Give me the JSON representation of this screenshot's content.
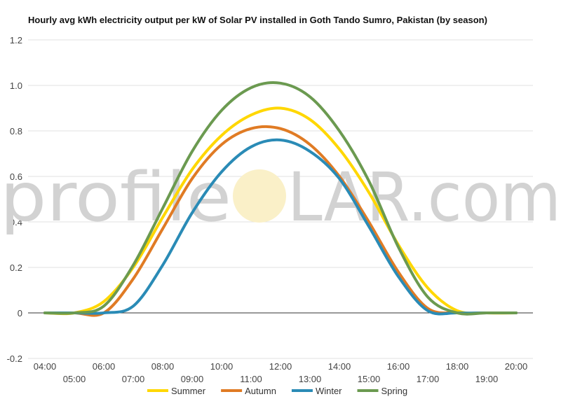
{
  "chart_data": {
    "type": "line",
    "title": "Hourly avg kWh electricity output per kW of Solar PV installed in Goth Tando Sumro, Pakistan (by season)",
    "watermark": {
      "left": "profile",
      "right": "LAR.com"
    },
    "x": [
      "04:00",
      "05:00",
      "06:00",
      "07:00",
      "08:00",
      "09:00",
      "10:00",
      "11:00",
      "12:00",
      "13:00",
      "14:00",
      "15:00",
      "16:00",
      "17:00",
      "18:00",
      "19:00",
      "20:00"
    ],
    "ylim": [
      -0.2,
      1.2
    ],
    "yticks": [
      "-0.2",
      "0",
      "0.2",
      "0.4",
      "0.6",
      "0.8",
      "1.0",
      "1.2"
    ],
    "grid": true,
    "legend_position": "bottom",
    "series": [
      {
        "name": "Summer",
        "color": "#FFD700",
        "values": [
          0.0,
          0.0,
          0.05,
          0.2,
          0.42,
          0.63,
          0.78,
          0.87,
          0.9,
          0.85,
          0.72,
          0.53,
          0.3,
          0.11,
          0.01,
          0.0,
          0.0
        ]
      },
      {
        "name": "Autumn",
        "color": "#E07B24",
        "values": [
          0.0,
          0.0,
          0.0,
          0.15,
          0.37,
          0.59,
          0.74,
          0.81,
          0.81,
          0.74,
          0.6,
          0.4,
          0.18,
          0.02,
          0.0,
          0.0,
          0.0
        ]
      },
      {
        "name": "Winter",
        "color": "#2A8BB6",
        "values": [
          0.0,
          0.0,
          0.0,
          0.03,
          0.21,
          0.44,
          0.62,
          0.73,
          0.76,
          0.71,
          0.59,
          0.38,
          0.16,
          0.01,
          0.0,
          0.0,
          0.0
        ]
      },
      {
        "name": "Spring",
        "color": "#6B9A50",
        "values": [
          0.0,
          0.0,
          0.03,
          0.21,
          0.46,
          0.71,
          0.89,
          0.99,
          1.01,
          0.95,
          0.8,
          0.58,
          0.29,
          0.07,
          0.0,
          0.0,
          0.0
        ]
      }
    ]
  }
}
